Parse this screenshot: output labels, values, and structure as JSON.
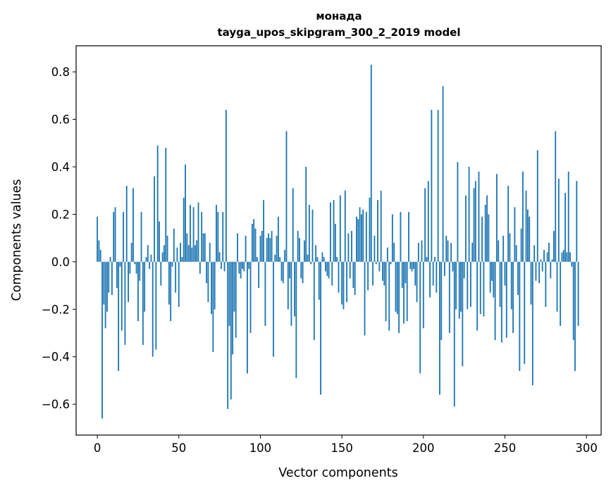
{
  "chart_data": {
    "type": "bar",
    "title": "монада",
    "subtitle": "tayga_upos_skipgram_300_2_2019 model",
    "xlabel": "Vector components",
    "ylabel": "Components values",
    "xlim": [
      -13,
      309
    ],
    "ylim": [
      -0.73,
      0.91
    ],
    "xticks": [
      0,
      50,
      100,
      150,
      200,
      250,
      300
    ],
    "xtick_labels": [
      "0",
      "50",
      "100",
      "150",
      "200",
      "250",
      "300"
    ],
    "yticks": [
      -0.6,
      -0.4,
      -0.2,
      0.0,
      0.2,
      0.4,
      0.6,
      0.8
    ],
    "ytick_labels": [
      "−0.6",
      "−0.4",
      "−0.2",
      "0.0",
      "0.2",
      "0.4",
      "0.6",
      "0.8"
    ],
    "bar_color": "#1f77b4",
    "grid": false,
    "legend": "none",
    "values": [
      0.19,
      0.09,
      0.05,
      -0.66,
      -0.18,
      -0.28,
      -0.21,
      -0.13,
      0.02,
      -0.14,
      0.21,
      0.23,
      -0.11,
      -0.46,
      -0.02,
      -0.29,
      0.21,
      -0.35,
      0.32,
      -0.17,
      -0.05,
      0.08,
      0.31,
      -0.01,
      -0.05,
      -0.25,
      -0.08,
      0.21,
      -0.35,
      -0.21,
      0.02,
      0.07,
      -0.03,
      0.03,
      -0.4,
      0.36,
      -0.37,
      0.49,
      0.17,
      -0.1,
      0.04,
      0.07,
      0.48,
      0.11,
      -0.18,
      -0.25,
      -0.02,
      0.14,
      -0.13,
      0.06,
      -0.19,
      0.08,
      0.02,
      0.27,
      0.41,
      0.12,
      0.07,
      0.24,
      0.06,
      0.23,
      0.07,
      0.09,
      0.25,
      -0.05,
      0.21,
      0.12,
      0.12,
      -0.09,
      -0.17,
      0.08,
      -0.22,
      -0.38,
      -0.2,
      0.24,
      0.21,
      0.04,
      -0.03,
      0.21,
      -0.04,
      0.64,
      -0.62,
      -0.27,
      -0.58,
      -0.39,
      -0.21,
      -0.32,
      0.12,
      -0.05,
      -0.07,
      -0.03,
      -0.04,
      0.11,
      -0.47,
      -0.03,
      -0.3,
      0.16,
      0.18,
      0.14,
      0.02,
      -0.11,
      0.11,
      0.13,
      0.26,
      -0.27,
      0.1,
      0.12,
      0.1,
      0.13,
      -0.4,
      0.03,
      0.11,
      0.19,
      0.02,
      -0.08,
      -0.09,
      0.05,
      0.55,
      -0.2,
      -0.07,
      -0.27,
      0.31,
      -0.23,
      -0.49,
      0.13,
      0.1,
      -0.07,
      -0.09,
      0.09,
      0.4,
      0.03,
      0.24,
      -0.01,
      0.22,
      -0.33,
      0.07,
      0.02,
      -0.16,
      -0.56,
      0.04,
      0.02,
      -0.04,
      -0.06,
      -0.07,
      0.25,
      -0.1,
      0.26,
      0.16,
      0.02,
      -0.13,
      0.28,
      -0.18,
      -0.2,
      0.3,
      -0.17,
      0.12,
      -0.07,
      0.13,
      -0.11,
      -0.14,
      0.19,
      0.18,
      0.23,
      0.2,
      0.22,
      -0.31,
      0.21,
      -0.12,
      0.27,
      0.83,
      -0.1,
      0.11,
      -0.01,
      0.26,
      -0.04,
      0.3,
      -0.08,
      -0.1,
      -0.25,
      0.06,
      -0.29,
      -0.01,
      0.2,
      0.08,
      -0.21,
      -0.22,
      -0.3,
      0.21,
      -0.11,
      -0.26,
      -0.09,
      -0.25,
      0.21,
      -0.03,
      -0.04,
      -0.03,
      -0.1,
      -0.17,
      0.08,
      -0.47,
      0.09,
      -0.28,
      0.31,
      0.02,
      0.34,
      -0.15,
      0.64,
      -0.1,
      0.02,
      -0.13,
      0.64,
      -0.56,
      -0.33,
      0.74,
      -0.06,
      0.11,
      0.09,
      -0.3,
      0.08,
      -0.04,
      -0.61,
      -0.2,
      0.42,
      -0.24,
      -0.21,
      -0.44,
      -0.07,
      0.28,
      -0.2,
      0.4,
      -0.19,
      0.08,
      0.31,
      0.34,
      -0.29,
      0.38,
      -0.22,
      0.19,
      -0.23,
      0.24,
      0.28,
      0.2,
      -0.13,
      -0.08,
      -0.15,
      -0.33,
      0.37,
      0.09,
      -0.19,
      -0.34,
      0.11,
      -0.1,
      -0.32,
      0.32,
      0.12,
      -0.2,
      -0.3,
      0.23,
      0.07,
      -0.14,
      -0.46,
      0.14,
      0.38,
      -0.43,
      0.3,
      0.22,
      0.19,
      -0.18,
      -0.52,
      0.07,
      -0.08,
      0.47,
      -0.09,
      0.01,
      -0.04,
      0.05,
      -0.19,
      0.04,
      0.08,
      -0.07,
      0.01,
      0.13,
      0.55,
      -0.21,
      0.35,
      -0.27,
      0.04,
      0.05,
      0.29,
      0.04,
      0.38,
      0.04,
      -0.02,
      -0.33,
      -0.46,
      0.34,
      -0.27
    ]
  }
}
